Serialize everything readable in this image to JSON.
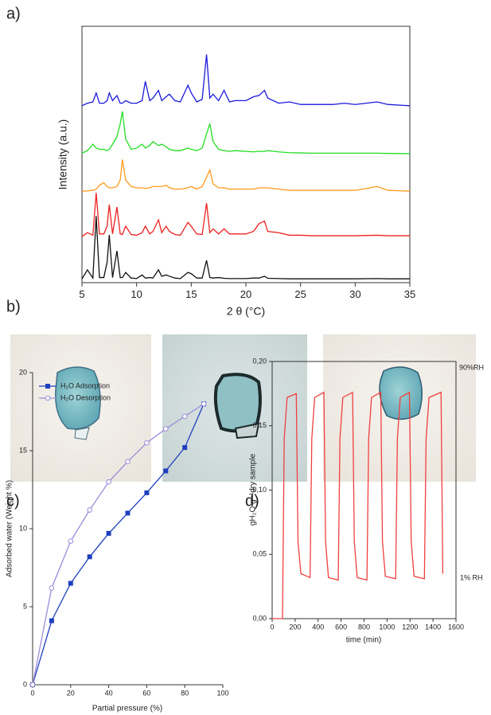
{
  "chart_data": [
    {
      "type": "line",
      "title": "a)",
      "xlabel": "2 θ (°C)",
      "ylabel": "Intensity (a.u.)",
      "xlim": [
        5,
        35
      ],
      "xticks": [
        5,
        10,
        15,
        20,
        25,
        30,
        35
      ],
      "ylim": [
        0,
        100
      ],
      "x": [
        5,
        5.5,
        6,
        6.3,
        6.6,
        7,
        7.3,
        7.5,
        7.8,
        8.2,
        8.5,
        8.7,
        9,
        9.5,
        10,
        10.5,
        10.8,
        11.2,
        11.5,
        12,
        12.3,
        12.7,
        13,
        13.5,
        14,
        14.7,
        15,
        15.5,
        16,
        16.4,
        16.7,
        17,
        17.5,
        18,
        18.5,
        19,
        20,
        20.7,
        21.2,
        21.7,
        22,
        23,
        24,
        25,
        26,
        28,
        29,
        30,
        32,
        33,
        35
      ],
      "series": [
        {
          "color": "#1a1adc",
          "values": [
            69,
            70,
            70.5,
            74,
            70,
            70,
            71,
            74,
            71,
            73,
            70,
            70,
            71,
            70,
            70,
            71,
            78.5,
            71,
            72,
            75,
            71,
            72.5,
            73.5,
            71,
            70.5,
            77,
            74,
            70.5,
            71.5,
            89,
            72,
            73.5,
            71,
            75,
            70.5,
            71,
            71,
            72.5,
            73,
            75,
            72,
            70,
            70.5,
            69.5,
            69.5,
            69.5,
            70,
            69.5,
            70.5,
            69.5,
            69
          ]
        },
        {
          "color": "#22dd22",
          "values": [
            50.5,
            51.5,
            54,
            52.5,
            52,
            52,
            51.5,
            52,
            54,
            57,
            62,
            66.8,
            56,
            52,
            52.5,
            54,
            52.5,
            53.5,
            55,
            53.5,
            54,
            53,
            52,
            51.5,
            51.5,
            52.5,
            52,
            51.5,
            52.5,
            58,
            62,
            55,
            52,
            51.5,
            51.2,
            51.5,
            51.2,
            51,
            51.2,
            51.2,
            51.5,
            51,
            50.7,
            50.6,
            50.5,
            50.5,
            50.5,
            50.5,
            50.5,
            50.4,
            50.3
          ]
        },
        {
          "color": "#ff9a1a",
          "values": [
            35.7,
            35.8,
            36,
            36.5,
            38,
            39,
            37.5,
            37,
            37,
            37.5,
            40,
            48,
            40,
            37.5,
            37,
            37,
            36.8,
            37,
            37.5,
            37.5,
            37.5,
            38,
            37,
            36.5,
            36.5,
            37,
            37.5,
            36.5,
            37.5,
            41,
            44,
            38.5,
            37,
            37,
            36.5,
            36.5,
            36.5,
            36.5,
            37,
            37,
            37,
            36.5,
            36,
            36,
            36,
            36,
            36,
            36,
            37.5,
            36,
            35.7
          ]
        },
        {
          "color": "#ee2020",
          "values": [
            18,
            19.5,
            18.5,
            35,
            19,
            19,
            22,
            30.4,
            19,
            29.5,
            19,
            18.8,
            22,
            18.8,
            18.5,
            19.5,
            22,
            19,
            20,
            24.5,
            19.5,
            22,
            20,
            18.8,
            18.5,
            23.5,
            22,
            19,
            18.8,
            31,
            19.5,
            21,
            19,
            21,
            19,
            19,
            19,
            20,
            23,
            24,
            20,
            19.5,
            18.5,
            18.5,
            18.3,
            18.3,
            18.3,
            18.3,
            18.5,
            18.3,
            18.3
          ]
        },
        {
          "color": "#111111",
          "values": [
            1.5,
            5,
            1.8,
            26,
            2,
            2,
            8,
            18.6,
            2,
            12.4,
            2,
            2,
            4,
            1.8,
            1.6,
            3,
            1.8,
            2,
            1.8,
            5,
            2.5,
            3,
            2.5,
            1.8,
            1.6,
            4,
            3.5,
            1.8,
            1.8,
            8.7,
            2,
            1.8,
            2,
            1.7,
            1.6,
            1.6,
            1.6,
            1.8,
            1.8,
            2.5,
            1.7,
            1.6,
            1.5,
            1.5,
            1.5,
            1.5,
            1.5,
            1.5,
            1.6,
            1.5,
            1.5
          ]
        }
      ]
    },
    {
      "type": "line",
      "title": "c)",
      "xlabel": "Partial pressure (%)",
      "ylabel": "Adsorbed water (Weight %)",
      "xlim": [
        0,
        100
      ],
      "xticks": [
        0,
        20,
        40,
        60,
        80,
        100
      ],
      "ylim": [
        0,
        20
      ],
      "yticks": [
        0,
        5,
        10,
        15,
        20
      ],
      "legend": "upper left",
      "x": [
        0,
        10,
        20,
        30,
        40,
        50,
        60,
        70,
        80,
        90
      ],
      "series": [
        {
          "name": "H₂O Adsorption",
          "color": "#1f3fbf",
          "marker": "filled-square",
          "values": [
            0,
            4.1,
            6.5,
            8.2,
            9.7,
            11,
            12.3,
            13.7,
            15.2,
            18
          ]
        },
        {
          "name": "H₂O Desorption",
          "color": "#9a8cd8",
          "marker": "open-circle",
          "values": [
            0,
            6.2,
            9.2,
            11.2,
            13,
            14.3,
            15.5,
            16.4,
            17.2,
            18
          ]
        }
      ]
    },
    {
      "type": "line",
      "title": "d)",
      "xlabel": "time (min)",
      "ylabel": "gH₂O g⁻¹dry sample",
      "xlim": [
        0,
        1600
      ],
      "xticks": [
        0,
        200,
        400,
        600,
        800,
        1000,
        1200,
        1400,
        1600
      ],
      "ylim": [
        0,
        0.2
      ],
      "yticks": [
        {
          "value": 0,
          "label": "0,00"
        },
        {
          "value": 0.05,
          "label": "0,05"
        },
        {
          "value": 0.1,
          "label": "0,10"
        },
        {
          "value": 0.15,
          "label": "0,15"
        },
        {
          "value": 0.2,
          "label": "0,20"
        }
      ],
      "annotations": [
        "90%RH",
        "1% RH"
      ],
      "x": [
        0,
        90,
        105,
        130,
        210,
        225,
        250,
        330,
        345,
        370,
        450,
        465,
        490,
        575,
        590,
        615,
        700,
        715,
        740,
        825,
        840,
        865,
        945,
        960,
        985,
        1075,
        1090,
        1115,
        1195,
        1210,
        1235,
        1325,
        1340,
        1365,
        1470,
        1485
      ],
      "series": [
        {
          "color": "#f04040",
          "values": [
            0,
            0,
            0.14,
            0.172,
            0.175,
            0.06,
            0.035,
            0.032,
            0.14,
            0.172,
            0.176,
            0.06,
            0.032,
            0.03,
            0.14,
            0.172,
            0.176,
            0.06,
            0.032,
            0.03,
            0.14,
            0.172,
            0.176,
            0.06,
            0.033,
            0.031,
            0.14,
            0.172,
            0.176,
            0.06,
            0.033,
            0.031,
            0.14,
            0.172,
            0.176,
            0.035
          ]
        }
      ]
    }
  ],
  "photos": {
    "label": "b)"
  }
}
